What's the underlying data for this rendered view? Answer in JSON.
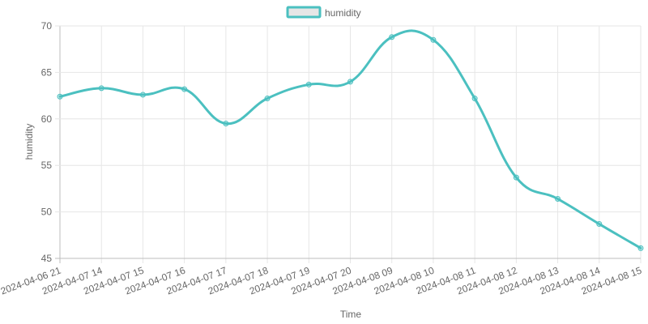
{
  "chart_data": {
    "type": "line",
    "title": "",
    "xlabel": "Time",
    "ylabel": "humidity",
    "legend": {
      "position": "top-center",
      "entries": [
        "humidity"
      ]
    },
    "ylim": [
      45,
      70
    ],
    "yticks": [
      45,
      50,
      55,
      60,
      65,
      70
    ],
    "grid": true,
    "categories": [
      "2024-04-06 21",
      "2024-04-07 14",
      "2024-04-07 15",
      "2024-04-07 16",
      "2024-04-07 17",
      "2024-04-07 18",
      "2024-04-07 19",
      "2024-04-07 20",
      "2024-04-08 09",
      "2024-04-08 10",
      "2024-04-08 11",
      "2024-04-08 12",
      "2024-04-08 13",
      "2024-04-08 14",
      "2024-04-08 15"
    ],
    "series": [
      {
        "name": "humidity",
        "color": "#4bc0c0",
        "fill": "#e6e6e6",
        "values": [
          62.4,
          63.3,
          62.6,
          63.2,
          59.5,
          62.2,
          63.7,
          64.0,
          68.8,
          68.5,
          62.2,
          53.7,
          51.4,
          48.7,
          46.1
        ]
      }
    ]
  }
}
